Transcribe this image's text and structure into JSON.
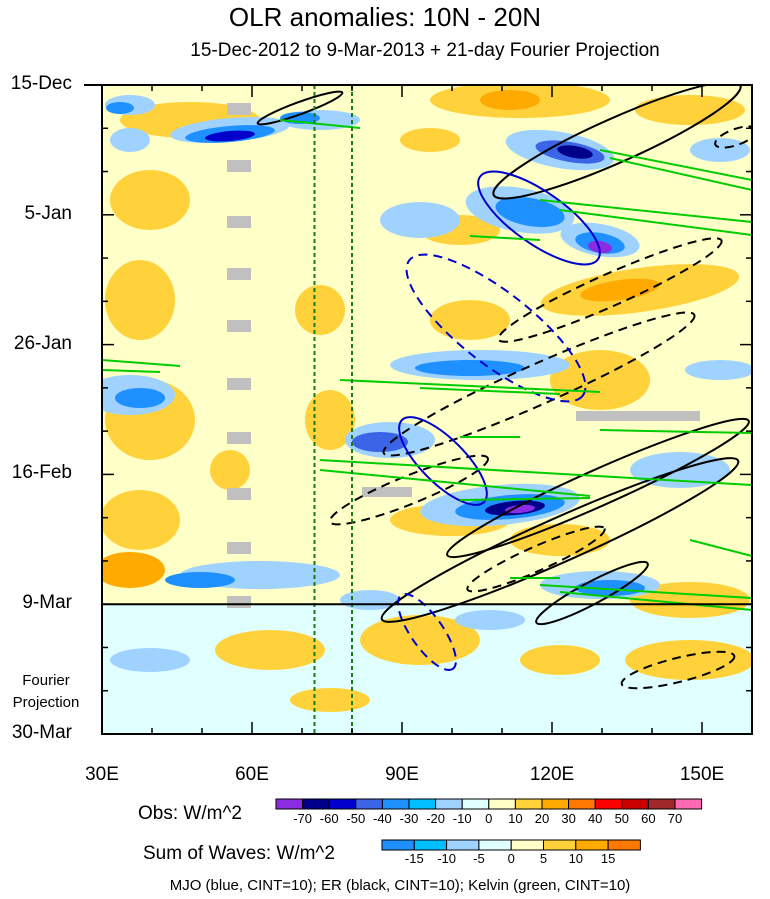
{
  "chart_data": {
    "type": "heatmap",
    "title": "OLR anomalies: 10N - 20N",
    "subtitle": "15-Dec-2012 to 9-Mar-2013 + 21-day Fourier Projection",
    "x_ticks": [
      "30E",
      "60E",
      "90E",
      "120E",
      "150E"
    ],
    "x_tick_values": [
      30,
      60,
      90,
      120,
      150
    ],
    "xlim": [
      30,
      160
    ],
    "y_ticks": [
      "15-Dec",
      "5-Jan",
      "26-Jan",
      "16-Feb",
      "9-Mar",
      "30-Mar"
    ],
    "y_tick_days": [
      0,
      21,
      42,
      63,
      84,
      105
    ],
    "ylim_days": [
      0,
      105
    ],
    "observation_end_day": 84,
    "projection_label": "Fourier\nProjection",
    "projection_label_lines": [
      "Fourier",
      "Projection"
    ],
    "vertical_lines_lon": [
      72.5,
      80
    ],
    "obs_colorbar": {
      "title": "Obs: W/m^2",
      "levels": [
        -70,
        -60,
        -50,
        -40,
        -30,
        -20,
        -10,
        0,
        10,
        20,
        30,
        40,
        50,
        60,
        70
      ],
      "colors": [
        "#8b2be2",
        "#00008b",
        "#0000cd",
        "#3c64e6",
        "#1e90ff",
        "#00bfff",
        "#a0d2ff",
        "#e0ffff",
        "#ffffc8",
        "#ffd23c",
        "#ffaa00",
        "#ff7800",
        "#ff0000",
        "#c80000",
        "#a02828",
        "#ff69b4"
      ]
    },
    "waves_colorbar": {
      "title": "Sum of Waves: W/m^2",
      "levels": [
        -15,
        -10,
        -5,
        0,
        5,
        10,
        15
      ],
      "colors": [
        "#1e90ff",
        "#00bfff",
        "#a0d2ff",
        "#e0ffff",
        "#ffffc8",
        "#ffd23c",
        "#ffaa00",
        "#ff7800"
      ]
    },
    "contours": {
      "MJO": {
        "color": "#0000cd",
        "cint": 10
      },
      "ER": {
        "color": "#000000",
        "cint": 10
      },
      "Kelvin": {
        "color": "#00cc00",
        "cint": 10
      }
    },
    "footer": "MJO (blue, CINT=10); ER (black, CINT=10); Kelvin (green, CINT=10)"
  }
}
